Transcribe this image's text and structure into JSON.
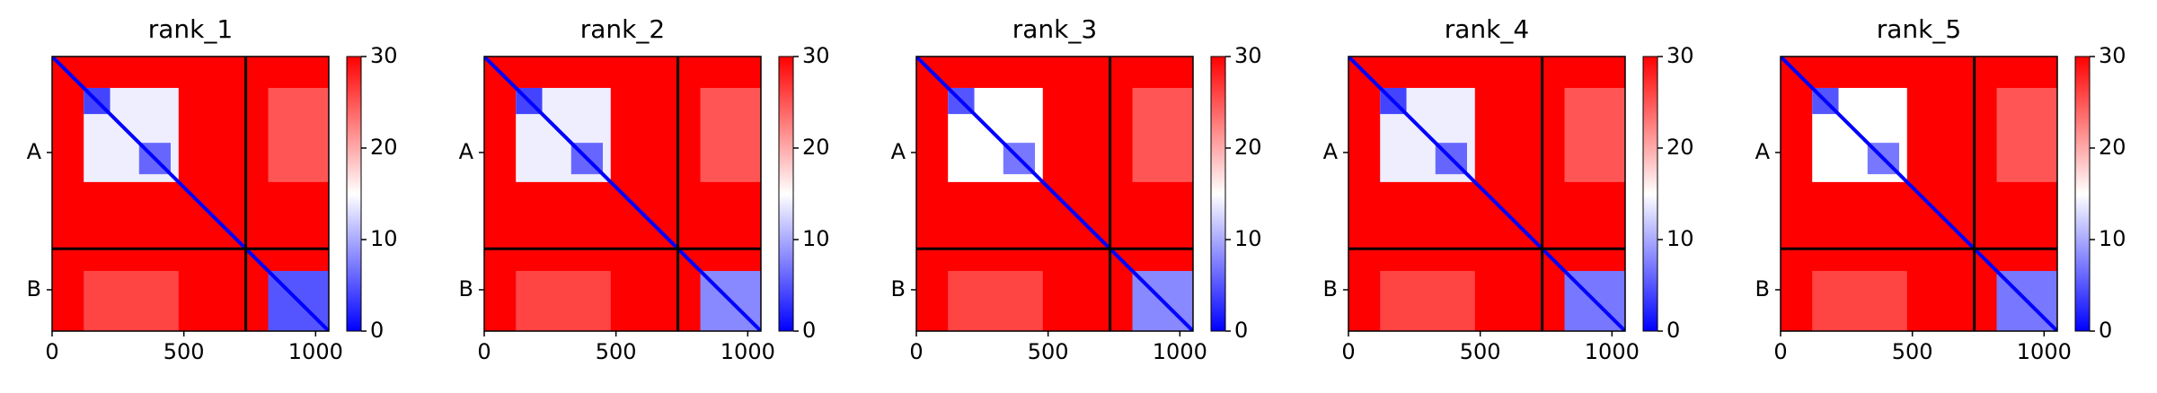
{
  "chart_data": [
    {
      "type": "heatmap",
      "title": "rank_1",
      "xlim": [
        0,
        1050
      ],
      "ylim": [
        1050,
        0
      ],
      "xticks": [
        0,
        500,
        1000
      ],
      "yticks": [
        {
          "value": 367,
          "label": "A"
        },
        {
          "value": 892,
          "label": "B"
        }
      ],
      "chain_breaks": [
        735
      ],
      "colormap": "bwr",
      "clim": [
        0,
        30
      ],
      "cbar_ticks": [
        0,
        10,
        20,
        30
      ],
      "diagonal_value": 0,
      "regions": [
        {
          "x": [
            0,
            1050
          ],
          "y": [
            0,
            1050
          ],
          "value": 30
        },
        {
          "x": [
            120,
            480
          ],
          "y": [
            120,
            480
          ],
          "value": 14
        },
        {
          "x": [
            120,
            220
          ],
          "y": [
            120,
            220
          ],
          "value": 4
        },
        {
          "x": [
            330,
            450
          ],
          "y": [
            330,
            450
          ],
          "value": 6
        },
        {
          "x": [
            820,
            1050
          ],
          "y": [
            820,
            1050
          ],
          "value": 5
        },
        {
          "x": [
            820,
            1050
          ],
          "y": [
            120,
            480
          ],
          "value": 25
        },
        {
          "x": [
            120,
            480
          ],
          "y": [
            820,
            1050
          ],
          "value": 26
        }
      ]
    },
    {
      "type": "heatmap",
      "title": "rank_2",
      "xlim": [
        0,
        1050
      ],
      "ylim": [
        1050,
        0
      ],
      "xticks": [
        0,
        500,
        1000
      ],
      "yticks": [
        {
          "value": 367,
          "label": "A"
        },
        {
          "value": 892,
          "label": "B"
        }
      ],
      "chain_breaks": [
        735
      ],
      "colormap": "bwr",
      "clim": [
        0,
        30
      ],
      "cbar_ticks": [
        0,
        10,
        20,
        30
      ],
      "diagonal_value": 0,
      "regions": [
        {
          "x": [
            0,
            1050
          ],
          "y": [
            0,
            1050
          ],
          "value": 30
        },
        {
          "x": [
            120,
            480
          ],
          "y": [
            120,
            480
          ],
          "value": 14
        },
        {
          "x": [
            120,
            220
          ],
          "y": [
            120,
            220
          ],
          "value": 4
        },
        {
          "x": [
            330,
            450
          ],
          "y": [
            330,
            450
          ],
          "value": 6
        },
        {
          "x": [
            820,
            1050
          ],
          "y": [
            820,
            1050
          ],
          "value": 8
        },
        {
          "x": [
            820,
            1050
          ],
          "y": [
            120,
            480
          ],
          "value": 25
        },
        {
          "x": [
            120,
            480
          ],
          "y": [
            820,
            1050
          ],
          "value": 26
        }
      ]
    },
    {
      "type": "heatmap",
      "title": "rank_3",
      "xlim": [
        0,
        1050
      ],
      "ylim": [
        1050,
        0
      ],
      "xticks": [
        0,
        500,
        1000
      ],
      "yticks": [
        {
          "value": 367,
          "label": "A"
        },
        {
          "value": 892,
          "label": "B"
        }
      ],
      "chain_breaks": [
        735
      ],
      "colormap": "bwr",
      "clim": [
        0,
        30
      ],
      "cbar_ticks": [
        0,
        10,
        20,
        30
      ],
      "diagonal_value": 0,
      "regions": [
        {
          "x": [
            0,
            1050
          ],
          "y": [
            0,
            1050
          ],
          "value": 30
        },
        {
          "x": [
            120,
            480
          ],
          "y": [
            120,
            480
          ],
          "value": 15
        },
        {
          "x": [
            120,
            220
          ],
          "y": [
            120,
            220
          ],
          "value": 5
        },
        {
          "x": [
            330,
            450
          ],
          "y": [
            330,
            450
          ],
          "value": 7
        },
        {
          "x": [
            820,
            1050
          ],
          "y": [
            820,
            1050
          ],
          "value": 8
        },
        {
          "x": [
            820,
            1050
          ],
          "y": [
            120,
            480
          ],
          "value": 25
        },
        {
          "x": [
            120,
            480
          ],
          "y": [
            820,
            1050
          ],
          "value": 26
        }
      ]
    },
    {
      "type": "heatmap",
      "title": "rank_4",
      "xlim": [
        0,
        1050
      ],
      "ylim": [
        1050,
        0
      ],
      "xticks": [
        0,
        500,
        1000
      ],
      "yticks": [
        {
          "value": 367,
          "label": "A"
        },
        {
          "value": 892,
          "label": "B"
        }
      ],
      "chain_breaks": [
        735
      ],
      "colormap": "bwr",
      "clim": [
        0,
        30
      ],
      "cbar_ticks": [
        0,
        10,
        20,
        30
      ],
      "diagonal_value": 0,
      "regions": [
        {
          "x": [
            0,
            1050
          ],
          "y": [
            0,
            1050
          ],
          "value": 30
        },
        {
          "x": [
            120,
            480
          ],
          "y": [
            120,
            480
          ],
          "value": 14
        },
        {
          "x": [
            120,
            220
          ],
          "y": [
            120,
            220
          ],
          "value": 4
        },
        {
          "x": [
            330,
            450
          ],
          "y": [
            330,
            450
          ],
          "value": 6
        },
        {
          "x": [
            820,
            1050
          ],
          "y": [
            820,
            1050
          ],
          "value": 7
        },
        {
          "x": [
            820,
            1050
          ],
          "y": [
            120,
            480
          ],
          "value": 25
        },
        {
          "x": [
            120,
            480
          ],
          "y": [
            820,
            1050
          ],
          "value": 26
        }
      ]
    },
    {
      "type": "heatmap",
      "title": "rank_5",
      "xlim": [
        0,
        1050
      ],
      "ylim": [
        1050,
        0
      ],
      "xticks": [
        0,
        500,
        1000
      ],
      "yticks": [
        {
          "value": 367,
          "label": "A"
        },
        {
          "value": 892,
          "label": "B"
        }
      ],
      "chain_breaks": [
        735
      ],
      "colormap": "bwr",
      "clim": [
        0,
        30
      ],
      "cbar_ticks": [
        0,
        10,
        20,
        30
      ],
      "diagonal_value": 0,
      "regions": [
        {
          "x": [
            0,
            1050
          ],
          "y": [
            0,
            1050
          ],
          "value": 30
        },
        {
          "x": [
            120,
            480
          ],
          "y": [
            120,
            480
          ],
          "value": 15
        },
        {
          "x": [
            120,
            220
          ],
          "y": [
            120,
            220
          ],
          "value": 5
        },
        {
          "x": [
            330,
            450
          ],
          "y": [
            330,
            450
          ],
          "value": 7
        },
        {
          "x": [
            820,
            1050
          ],
          "y": [
            820,
            1050
          ],
          "value": 7
        },
        {
          "x": [
            820,
            1050
          ],
          "y": [
            120,
            480
          ],
          "value": 25
        },
        {
          "x": [
            120,
            480
          ],
          "y": [
            820,
            1050
          ],
          "value": 26
        }
      ]
    }
  ]
}
